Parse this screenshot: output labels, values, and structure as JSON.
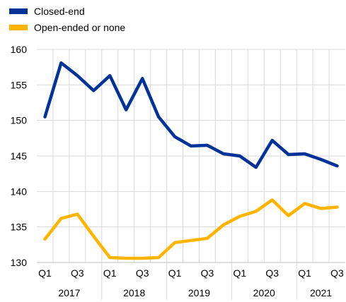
{
  "chart_data": {
    "type": "line",
    "title": "",
    "xlabel": "",
    "ylabel": "",
    "ylim": [
      130,
      160
    ],
    "yticks": [
      130,
      135,
      140,
      145,
      150,
      155,
      160
    ],
    "grid": true,
    "legend_position": "top-left",
    "x": [
      "2017 Q1",
      "2017 Q2",
      "2017 Q3",
      "2017 Q4",
      "2018 Q1",
      "2018 Q2",
      "2018 Q3",
      "2018 Q4",
      "2019 Q1",
      "2019 Q2",
      "2019 Q3",
      "2019 Q4",
      "2020 Q1",
      "2020 Q2",
      "2020 Q3",
      "2020 Q4",
      "2021 Q1",
      "2021 Q2",
      "2021 Q3"
    ],
    "x_tick_labels": [
      {
        "index": 0,
        "label": "Q1"
      },
      {
        "index": 2,
        "label": "Q3"
      },
      {
        "index": 4,
        "label": "Q1"
      },
      {
        "index": 6,
        "label": "Q3"
      },
      {
        "index": 8,
        "label": "Q1"
      },
      {
        "index": 10,
        "label": "Q3"
      },
      {
        "index": 12,
        "label": "Q1"
      },
      {
        "index": 14,
        "label": "Q3"
      },
      {
        "index": 16,
        "label": "Q1"
      },
      {
        "index": 18,
        "label": "Q3"
      }
    ],
    "years": [
      {
        "label": "2017",
        "start": 0,
        "end": 3
      },
      {
        "label": "2018",
        "start": 4,
        "end": 7
      },
      {
        "label": "2019",
        "start": 8,
        "end": 11
      },
      {
        "label": "2020",
        "start": 12,
        "end": 15
      },
      {
        "label": "2021",
        "start": 16,
        "end": 18
      }
    ],
    "series": [
      {
        "name": "Closed-end",
        "color": "#003299",
        "values": [
          150.5,
          158.1,
          156.3,
          154.2,
          156.3,
          151.5,
          155.9,
          150.5,
          147.7,
          146.4,
          146.5,
          145.3,
          145.0,
          143.4,
          147.2,
          145.2,
          145.3,
          144.5,
          143.6
        ]
      },
      {
        "name": "Open-ended or none",
        "color": "#FFB400",
        "values": [
          133.3,
          136.2,
          136.8,
          133.7,
          130.7,
          130.6,
          130.6,
          130.7,
          132.8,
          133.1,
          133.4,
          135.3,
          136.5,
          137.2,
          138.8,
          136.6,
          138.3,
          137.6,
          137.8
        ]
      }
    ]
  }
}
